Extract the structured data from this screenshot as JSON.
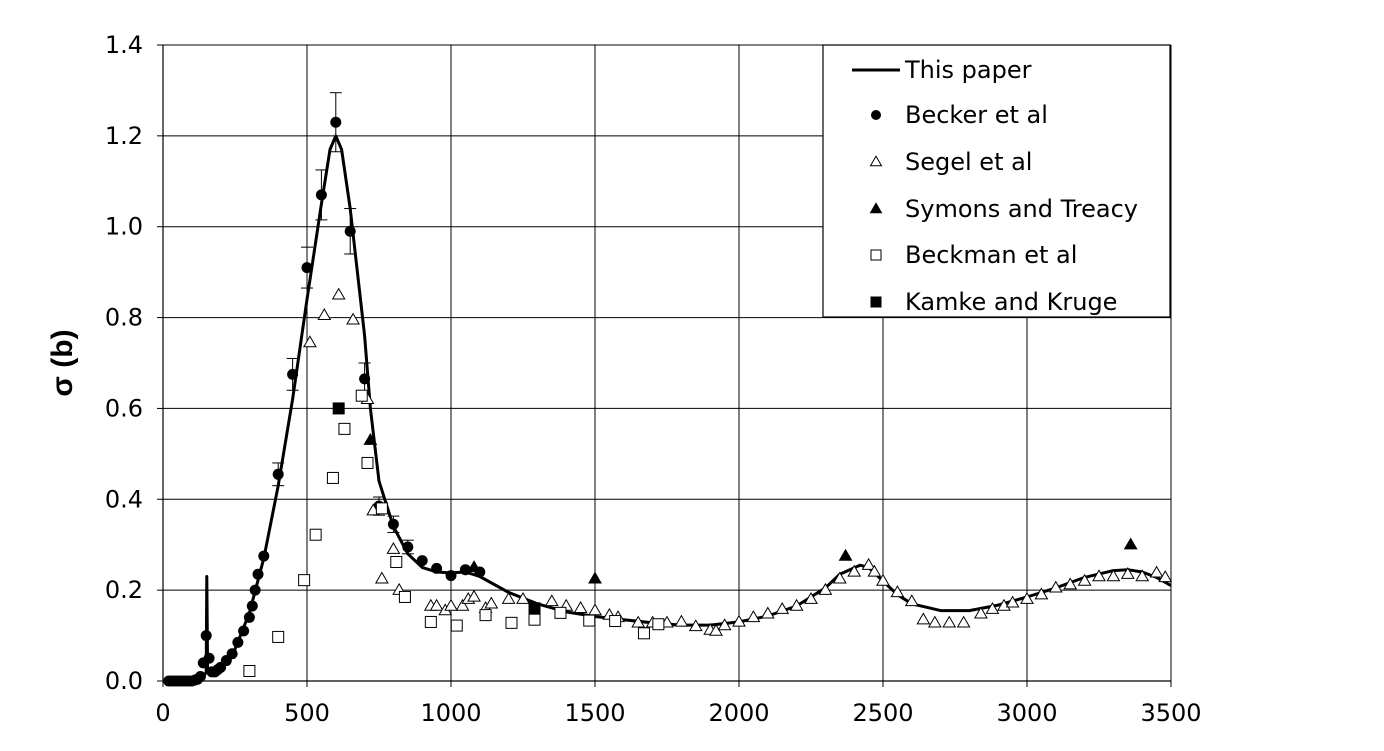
{
  "chart_data": {
    "type": "scatter",
    "xlim": [
      0,
      3500
    ],
    "ylim": [
      0,
      1.4
    ],
    "x_ticks": [
      "0",
      "500",
      "1000",
      "1500",
      "2000",
      "2500",
      "3000",
      "3500"
    ],
    "y_ticks": [
      "0.0",
      "0.2",
      "0.4",
      "0.6",
      "0.8",
      "1.0",
      "1.2",
      "1.4"
    ],
    "xlabel": "",
    "ylabel": "σ  (b)",
    "grid": true,
    "legend_position": "top-right",
    "series": [
      {
        "name": "This paper",
        "marker": "line",
        "points": [
          [
            0,
            0
          ],
          [
            50,
            0
          ],
          [
            100,
            0.002
          ],
          [
            140,
            0.008
          ],
          [
            150,
            0.02
          ],
          [
            152,
            0.23
          ],
          [
            155,
            0.02
          ],
          [
            170,
            0.015
          ],
          [
            200,
            0.025
          ],
          [
            250,
            0.07
          ],
          [
            300,
            0.15
          ],
          [
            350,
            0.27
          ],
          [
            400,
            0.43
          ],
          [
            450,
            0.62
          ],
          [
            500,
            0.84
          ],
          [
            550,
            1.05
          ],
          [
            580,
            1.17
          ],
          [
            600,
            1.2
          ],
          [
            620,
            1.17
          ],
          [
            650,
            1.04
          ],
          [
            700,
            0.76
          ],
          [
            720,
            0.6
          ],
          [
            750,
            0.44
          ],
          [
            800,
            0.34
          ],
          [
            850,
            0.28
          ],
          [
            900,
            0.25
          ],
          [
            950,
            0.24
          ],
          [
            1000,
            0.238
          ],
          [
            1050,
            0.24
          ],
          [
            1100,
            0.23
          ],
          [
            1200,
            0.195
          ],
          [
            1300,
            0.17
          ],
          [
            1400,
            0.152
          ],
          [
            1500,
            0.142
          ],
          [
            1600,
            0.135
          ],
          [
            1700,
            0.128
          ],
          [
            1800,
            0.123
          ],
          [
            1900,
            0.123
          ],
          [
            2000,
            0.13
          ],
          [
            2100,
            0.143
          ],
          [
            2200,
            0.165
          ],
          [
            2300,
            0.205
          ],
          [
            2350,
            0.235
          ],
          [
            2420,
            0.255
          ],
          [
            2450,
            0.25
          ],
          [
            2500,
            0.22
          ],
          [
            2550,
            0.19
          ],
          [
            2600,
            0.17
          ],
          [
            2700,
            0.155
          ],
          [
            2800,
            0.155
          ],
          [
            2900,
            0.167
          ],
          [
            3000,
            0.185
          ],
          [
            3100,
            0.205
          ],
          [
            3200,
            0.228
          ],
          [
            3300,
            0.243
          ],
          [
            3350,
            0.245
          ],
          [
            3400,
            0.24
          ],
          [
            3450,
            0.228
          ],
          [
            3500,
            0.21
          ]
        ]
      },
      {
        "name": "Becker et al",
        "marker": "circle",
        "points": [
          [
            20,
            0
          ],
          [
            30,
            0
          ],
          [
            40,
            0
          ],
          [
            50,
            0
          ],
          [
            60,
            0
          ],
          [
            70,
            0
          ],
          [
            80,
            0
          ],
          [
            90,
            0
          ],
          [
            100,
            0
          ],
          [
            110,
            0.002
          ],
          [
            120,
            0.004
          ],
          [
            130,
            0.01
          ],
          [
            140,
            0.04
          ],
          [
            150,
            0.1
          ],
          [
            160,
            0.05
          ],
          [
            170,
            0.02
          ],
          [
            180,
            0.02
          ],
          [
            190,
            0.025
          ],
          [
            200,
            0.03
          ],
          [
            220,
            0.045
          ],
          [
            240,
            0.06
          ],
          [
            260,
            0.085
          ],
          [
            280,
            0.11
          ],
          [
            300,
            0.14
          ],
          [
            310,
            0.165
          ],
          [
            320,
            0.2
          ],
          [
            330,
            0.235
          ],
          [
            350,
            0.275
          ],
          [
            400,
            0.455
          ],
          [
            450,
            0.675
          ],
          [
            500,
            0.91
          ],
          [
            550,
            1.07
          ],
          [
            600,
            1.23
          ],
          [
            650,
            0.99
          ],
          [
            700,
            0.665
          ],
          [
            750,
            0.385
          ],
          [
            800,
            0.345
          ],
          [
            850,
            0.295
          ],
          [
            900,
            0.265
          ],
          [
            950,
            0.248
          ],
          [
            1000,
            0.232
          ],
          [
            1050,
            0.245
          ],
          [
            1100,
            0.24
          ]
        ]
      },
      {
        "name": "Segel et al",
        "marker": "triangle-open",
        "points": [
          [
            510,
            0.745
          ],
          [
            560,
            0.805
          ],
          [
            610,
            0.85
          ],
          [
            660,
            0.795
          ],
          [
            710,
            0.62
          ],
          [
            730,
            0.375
          ],
          [
            760,
            0.225
          ],
          [
            800,
            0.29
          ],
          [
            820,
            0.2
          ],
          [
            930,
            0.165
          ],
          [
            950,
            0.165
          ],
          [
            980,
            0.155
          ],
          [
            1000,
            0.165
          ],
          [
            1040,
            0.165
          ],
          [
            1060,
            0.18
          ],
          [
            1080,
            0.185
          ],
          [
            1120,
            0.16
          ],
          [
            1140,
            0.17
          ],
          [
            1200,
            0.18
          ],
          [
            1250,
            0.18
          ],
          [
            1350,
            0.175
          ],
          [
            1400,
            0.165
          ],
          [
            1450,
            0.16
          ],
          [
            1500,
            0.155
          ],
          [
            1550,
            0.145
          ],
          [
            1580,
            0.14
          ],
          [
            1650,
            0.128
          ],
          [
            1700,
            0.128
          ],
          [
            1750,
            0.128
          ],
          [
            1800,
            0.13
          ],
          [
            1850,
            0.12
          ],
          [
            1900,
            0.112
          ],
          [
            1920,
            0.11
          ],
          [
            1950,
            0.122
          ],
          [
            2000,
            0.13
          ],
          [
            2050,
            0.14
          ],
          [
            2100,
            0.148
          ],
          [
            2150,
            0.158
          ],
          [
            2200,
            0.165
          ],
          [
            2250,
            0.18
          ],
          [
            2300,
            0.2
          ],
          [
            2350,
            0.225
          ],
          [
            2400,
            0.24
          ],
          [
            2450,
            0.255
          ],
          [
            2470,
            0.24
          ],
          [
            2500,
            0.22
          ],
          [
            2550,
            0.195
          ],
          [
            2600,
            0.175
          ],
          [
            2640,
            0.135
          ],
          [
            2680,
            0.128
          ],
          [
            2730,
            0.128
          ],
          [
            2780,
            0.128
          ],
          [
            2840,
            0.148
          ],
          [
            2880,
            0.158
          ],
          [
            2920,
            0.165
          ],
          [
            2950,
            0.172
          ],
          [
            3000,
            0.18
          ],
          [
            3050,
            0.19
          ],
          [
            3100,
            0.205
          ],
          [
            3150,
            0.212
          ],
          [
            3200,
            0.22
          ],
          [
            3250,
            0.23
          ],
          [
            3300,
            0.23
          ],
          [
            3350,
            0.235
          ],
          [
            3400,
            0.23
          ],
          [
            3450,
            0.238
          ],
          [
            3480,
            0.228
          ]
        ]
      },
      {
        "name": "Symons and Treacy",
        "marker": "triangle-filled",
        "points": [
          [
            720,
            0.53
          ],
          [
            1080,
            0.25
          ],
          [
            1500,
            0.225
          ],
          [
            2370,
            0.275
          ],
          [
            3360,
            0.3
          ]
        ]
      },
      {
        "name": "Beckman et al",
        "marker": "square-open",
        "points": [
          [
            300,
            0.022
          ],
          [
            400,
            0.097
          ],
          [
            490,
            0.222
          ],
          [
            530,
            0.322
          ],
          [
            590,
            0.447
          ],
          [
            630,
            0.555
          ],
          [
            690,
            0.628
          ],
          [
            710,
            0.48
          ],
          [
            760,
            0.38
          ],
          [
            810,
            0.262
          ],
          [
            840,
            0.185
          ],
          [
            930,
            0.13
          ],
          [
            1020,
            0.122
          ],
          [
            1120,
            0.145
          ],
          [
            1210,
            0.128
          ],
          [
            1290,
            0.135
          ],
          [
            1380,
            0.15
          ],
          [
            1480,
            0.133
          ],
          [
            1570,
            0.132
          ],
          [
            1670,
            0.105
          ],
          [
            1720,
            0.125
          ]
        ]
      },
      {
        "name": "Kamke and Kruge",
        "marker": "square-filled",
        "points": [
          [
            610,
            0.6
          ],
          [
            1290,
            0.16
          ]
        ]
      }
    ],
    "error_bars": {
      "series": "Becker et al",
      "bars": [
        [
          400,
          0.455,
          0.025
        ],
        [
          450,
          0.675,
          0.035
        ],
        [
          500,
          0.91,
          0.045
        ],
        [
          550,
          1.07,
          0.055
        ],
        [
          600,
          1.23,
          0.065
        ],
        [
          650,
          0.99,
          0.05
        ],
        [
          700,
          0.665,
          0.035
        ],
        [
          750,
          0.385,
          0.02
        ],
        [
          800,
          0.345,
          0.018
        ],
        [
          850,
          0.295,
          0.015
        ]
      ]
    }
  }
}
